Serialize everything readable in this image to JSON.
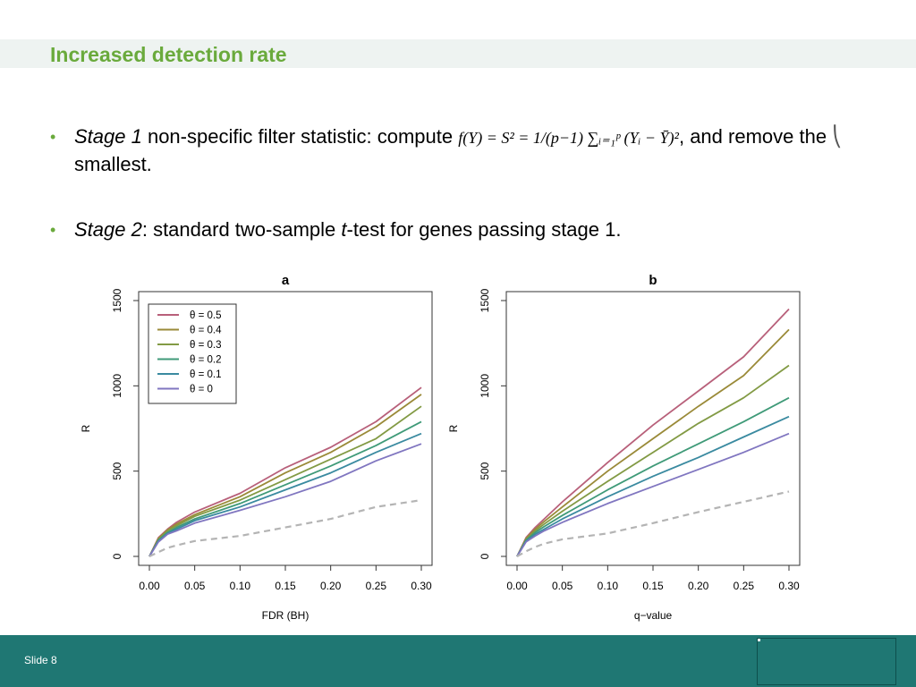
{
  "slide": {
    "title": "Increased detection rate",
    "footer_label": "Slide 8",
    "colors": {
      "title": "#6aaa3c",
      "footer": "#1f7773",
      "bullet": "#6aaa3c"
    }
  },
  "bullets": [
    {
      "italic": "Stage 1",
      "text_a": " non-specific filter statistic: compute ",
      "formula": "f(Y) = S² = 1/(p−1) ∑ᵢ₌₁ᵖ (Yᵢ − Ȳ)²",
      "text_b": ", and remove the ",
      "symbol": "⎝",
      "text_c": " smallest."
    },
    {
      "italic": "Stage 2",
      "text_a": ": standard two-sample ",
      "italic2": "t",
      "text_b": "-test for genes passing stage 1."
    }
  ],
  "chart_data": [
    {
      "type": "line",
      "title": "a",
      "xlabel": "FDR (BH)",
      "ylabel": "R",
      "xlim": [
        0,
        0.3
      ],
      "ylim": [
        0,
        1500
      ],
      "xticks": [
        "0.00",
        "0.05",
        "0.10",
        "0.15",
        "0.20",
        "0.25",
        "0.30"
      ],
      "yticks": [
        "0",
        "500",
        "1000",
        "1500"
      ],
      "legend_position": "top-left",
      "x": [
        0,
        0.01,
        0.02,
        0.03,
        0.05,
        0.1,
        0.15,
        0.2,
        0.25,
        0.3
      ],
      "series": [
        {
          "name": "θ = 0.5",
          "color": "#b8607a",
          "values": [
            0,
            110,
            160,
            200,
            260,
            370,
            520,
            640,
            790,
            990
          ]
        },
        {
          "name": "θ = 0.4",
          "color": "#9a8a38",
          "values": [
            0,
            105,
            155,
            190,
            245,
            350,
            490,
            610,
            760,
            950
          ]
        },
        {
          "name": "θ = 0.3",
          "color": "#829a44",
          "values": [
            0,
            100,
            150,
            180,
            235,
            330,
            450,
            570,
            690,
            880
          ]
        },
        {
          "name": "θ = 0.2",
          "color": "#3f9a78",
          "values": [
            0,
            95,
            140,
            170,
            220,
            310,
            420,
            530,
            650,
            790
          ]
        },
        {
          "name": "θ = 0.1",
          "color": "#3a8aa0",
          "values": [
            0,
            90,
            135,
            160,
            210,
            290,
            390,
            490,
            610,
            720
          ]
        },
        {
          "name": "θ = 0",
          "color": "#8076c0",
          "values": [
            0,
            85,
            130,
            150,
            195,
            270,
            350,
            440,
            560,
            660
          ]
        },
        {
          "name": "",
          "color": "#b4b4b4",
          "dashed": true,
          "values": [
            0,
            25,
            50,
            65,
            90,
            120,
            170,
            220,
            290,
            330
          ]
        }
      ]
    },
    {
      "type": "line",
      "title": "b",
      "xlabel": "q−value",
      "ylabel": "R",
      "xlim": [
        0,
        0.3
      ],
      "ylim": [
        0,
        1500
      ],
      "xticks": [
        "0.00",
        "0.05",
        "0.10",
        "0.15",
        "0.20",
        "0.25",
        "0.30"
      ],
      "yticks": [
        "0",
        "500",
        "1000",
        "1500"
      ],
      "x": [
        0,
        0.01,
        0.02,
        0.03,
        0.05,
        0.1,
        0.15,
        0.2,
        0.25,
        0.3
      ],
      "series": [
        {
          "name": "θ = 0.5",
          "color": "#b8607a",
          "values": [
            0,
            110,
            170,
            220,
            320,
            550,
            770,
            970,
            1170,
            1450
          ]
        },
        {
          "name": "θ = 0.4",
          "color": "#9a8a38",
          "values": [
            0,
            105,
            160,
            205,
            290,
            500,
            690,
            880,
            1060,
            1330
          ]
        },
        {
          "name": "θ = 0.3",
          "color": "#829a44",
          "values": [
            0,
            100,
            150,
            190,
            265,
            440,
            610,
            780,
            930,
            1120
          ]
        },
        {
          "name": "θ = 0.2",
          "color": "#3f9a78",
          "values": [
            0,
            95,
            140,
            175,
            240,
            390,
            530,
            660,
            790,
            930
          ]
        },
        {
          "name": "θ = 0.1",
          "color": "#3a8aa0",
          "values": [
            0,
            90,
            130,
            160,
            220,
            350,
            470,
            580,
            700,
            820
          ]
        },
        {
          "name": "θ = 0",
          "color": "#8076c0",
          "values": [
            0,
            85,
            120,
            150,
            200,
            310,
            410,
            510,
            610,
            720
          ]
        },
        {
          "name": "",
          "color": "#b4b4b4",
          "dashed": true,
          "values": [
            0,
            30,
            55,
            75,
            100,
            135,
            195,
            260,
            320,
            380
          ]
        }
      ]
    }
  ]
}
